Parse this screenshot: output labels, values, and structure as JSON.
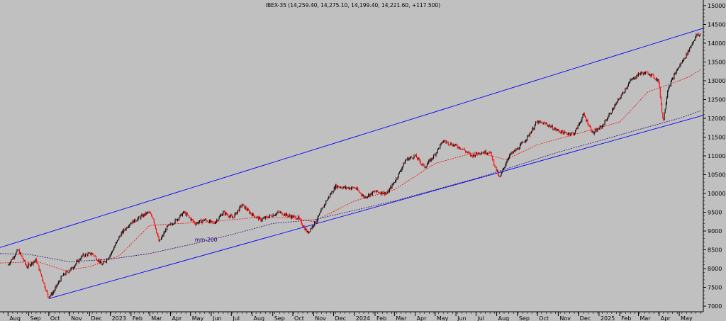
{
  "window": {
    "background": "#c0c0c0"
  },
  "chart_data": {
    "type": "line",
    "title": "IBEX-35 (14,259.40, 14,275.10, 14,199.40, 14,221.60, +117.500)",
    "price_series_style": "candlestick (black up / red down)",
    "ylim": [
      6850,
      15150
    ],
    "y_ticks": [
      7000,
      7500,
      8000,
      8500,
      9000,
      9500,
      10000,
      10500,
      11000,
      11500,
      12000,
      12500,
      13000,
      13500,
      14000,
      14500,
      15000
    ],
    "y_axis_position": "right",
    "grid": false,
    "x_tick_labels": [
      "Aug",
      "Sep",
      "Oct",
      "Nov",
      "Dec",
      "2023",
      "Feb",
      "Mar",
      "Apr",
      "May",
      "Jun",
      "Jul",
      "Aug",
      "Sep",
      "Oct",
      "Nov",
      "Dec",
      "2024",
      "Feb",
      "Mar",
      "Apr",
      "May",
      "Jun",
      "Jul",
      "Aug",
      "Sep",
      "Oct",
      "Nov",
      "Dec",
      "2025",
      "Feb",
      "Mar",
      "Apr",
      "May"
    ],
    "price_path": [
      [
        "2022-08-01",
        8100
      ],
      [
        "2022-08-16",
        8500
      ],
      [
        "2022-08-29",
        8050
      ],
      [
        "2022-09-12",
        8230
      ],
      [
        "2022-09-30",
        7250
      ],
      [
        "2022-10-07",
        7350
      ],
      [
        "2022-10-21",
        7800
      ],
      [
        "2022-11-04",
        8000
      ],
      [
        "2022-11-21",
        8350
      ],
      [
        "2022-12-05",
        8400
      ],
      [
        "2022-12-20",
        8100
      ],
      [
        "2023-01-02",
        8400
      ],
      [
        "2023-01-16",
        8900
      ],
      [
        "2023-01-30",
        9200
      ],
      [
        "2023-02-13",
        9350
      ],
      [
        "2023-02-27",
        9500
      ],
      [
        "2023-03-06",
        9350
      ],
      [
        "2023-03-15",
        8700
      ],
      [
        "2023-03-27",
        9100
      ],
      [
        "2023-04-10",
        9300
      ],
      [
        "2023-04-21",
        9500
      ],
      [
        "2023-05-08",
        9200
      ],
      [
        "2023-05-22",
        9300
      ],
      [
        "2023-06-05",
        9200
      ],
      [
        "2023-06-19",
        9500
      ],
      [
        "2023-07-03",
        9350
      ],
      [
        "2023-07-17",
        9700
      ],
      [
        "2023-07-31",
        9450
      ],
      [
        "2023-08-14",
        9300
      ],
      [
        "2023-08-28",
        9400
      ],
      [
        "2023-09-11",
        9500
      ],
      [
        "2023-09-25",
        9400
      ],
      [
        "2023-10-09",
        9350
      ],
      [
        "2023-10-23",
        8950
      ],
      [
        "2023-11-06",
        9300
      ],
      [
        "2023-11-20",
        9800
      ],
      [
        "2023-12-04",
        10200
      ],
      [
        "2023-12-18",
        10150
      ],
      [
        "2024-01-02",
        10150
      ],
      [
        "2024-01-16",
        9900
      ],
      [
        "2024-02-01",
        10050
      ],
      [
        "2024-02-19",
        10000
      ],
      [
        "2024-03-04",
        10400
      ],
      [
        "2024-03-18",
        10900
      ],
      [
        "2024-04-01",
        11000
      ],
      [
        "2024-04-15",
        10700
      ],
      [
        "2024-04-29",
        11000
      ],
      [
        "2024-05-13",
        11400
      ],
      [
        "2024-05-27",
        11300
      ],
      [
        "2024-06-10",
        11200
      ],
      [
        "2024-06-24",
        11000
      ],
      [
        "2024-07-08",
        11100
      ],
      [
        "2024-07-22",
        11100
      ],
      [
        "2024-08-05",
        10400
      ],
      [
        "2024-08-19",
        11000
      ],
      [
        "2024-09-02",
        11200
      ],
      [
        "2024-09-16",
        11500
      ],
      [
        "2024-09-30",
        11900
      ],
      [
        "2024-10-14",
        11850
      ],
      [
        "2024-10-28",
        11700
      ],
      [
        "2024-11-11",
        11600
      ],
      [
        "2024-11-25",
        11600
      ],
      [
        "2024-12-09",
        12100
      ],
      [
        "2024-12-23",
        11600
      ],
      [
        "2025-01-06",
        11800
      ],
      [
        "2025-01-20",
        12200
      ],
      [
        "2025-02-03",
        12600
      ],
      [
        "2025-02-17",
        13000
      ],
      [
        "2025-03-03",
        13200
      ],
      [
        "2025-03-17",
        13200
      ],
      [
        "2025-03-31",
        13000
      ],
      [
        "2025-04-07",
        11900
      ],
      [
        "2025-04-14",
        12800
      ],
      [
        "2025-04-28",
        13300
      ],
      [
        "2025-05-12",
        13700
      ],
      [
        "2025-05-26",
        14200
      ],
      [
        "2025-06-02",
        14222
      ]
    ],
    "overlays": [
      {
        "label": "",
        "style": "solid",
        "color": "#0000ff",
        "points": [
          [
            "2022-07-20",
            8560
          ],
          [
            "2025-06-06",
            14400
          ]
        ]
      },
      {
        "label": "",
        "style": "solid",
        "color": "#0000ff",
        "points": [
          [
            "2022-10-01",
            7200
          ],
          [
            "2025-06-06",
            12080
          ]
        ]
      },
      {
        "label": "",
        "style": "dotted",
        "color": "#ff0000",
        "points": [
          [
            "2022-07-20",
            8150
          ],
          [
            "2022-09-15",
            8180
          ],
          [
            "2022-10-25",
            7950
          ],
          [
            "2022-12-01",
            8050
          ],
          [
            "2023-01-15",
            8350
          ],
          [
            "2023-03-01",
            9150
          ],
          [
            "2023-04-15",
            9200
          ],
          [
            "2023-06-01",
            9250
          ],
          [
            "2023-08-01",
            9350
          ],
          [
            "2023-10-01",
            9350
          ],
          [
            "2023-11-01",
            9250
          ],
          [
            "2024-01-01",
            9800
          ],
          [
            "2024-03-01",
            10100
          ],
          [
            "2024-05-01",
            10800
          ],
          [
            "2024-07-01",
            11100
          ],
          [
            "2024-08-15",
            10900
          ],
          [
            "2024-10-01",
            11300
          ],
          [
            "2024-12-01",
            11600
          ],
          [
            "2025-02-01",
            11900
          ],
          [
            "2025-03-15",
            12700
          ],
          [
            "2025-04-15",
            12900
          ],
          [
            "2025-05-15",
            13100
          ],
          [
            "2025-06-02",
            13300
          ]
        ]
      },
      {
        "label": "mm-200",
        "style": "dotted",
        "color": "#2a006e",
        "points": [
          [
            "2022-07-20",
            8400
          ],
          [
            "2022-09-01",
            8380
          ],
          [
            "2022-11-01",
            8180
          ],
          [
            "2023-01-01",
            8250
          ],
          [
            "2023-03-01",
            8400
          ],
          [
            "2023-05-01",
            8640
          ],
          [
            "2023-07-01",
            8900
          ],
          [
            "2023-09-01",
            9200
          ],
          [
            "2023-11-01",
            9300
          ],
          [
            "2024-01-01",
            9550
          ],
          [
            "2024-03-01",
            9800
          ],
          [
            "2024-05-01",
            10100
          ],
          [
            "2024-07-01",
            10400
          ],
          [
            "2024-09-01",
            10750
          ],
          [
            "2024-11-01",
            11100
          ],
          [
            "2025-01-01",
            11400
          ],
          [
            "2025-03-01",
            11700
          ],
          [
            "2025-05-01",
            12000
          ],
          [
            "2025-06-02",
            12200
          ]
        ]
      }
    ]
  }
}
